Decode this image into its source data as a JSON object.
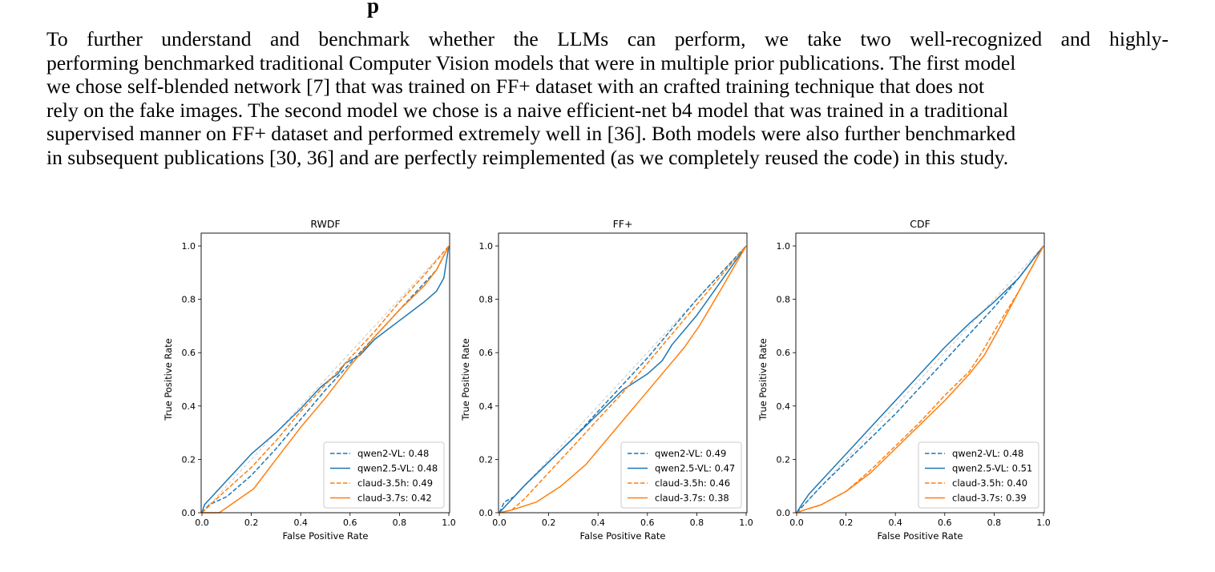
{
  "heading_fragment": "p",
  "paragraph_lines": [
    "To further understand and benchmark whether the LLMs can perform, we take two well-recognized and highly-",
    "performing benchmarked traditional Computer Vision models that were in multiple prior publications. The first model",
    "we chose self-blended network [7] that was trained on FF+ dataset with an crafted training technique that does not",
    "rely on the fake images. The second model we chose is a naive efficient-net b4 model that was trained in a traditional",
    "supervised manner on FF+ dataset and performed extremely well in [36]. Both models were also further benchmarked",
    "in subsequent publications [30, 36] and are perfectly reimplemented (as we completely reused the code) in this study."
  ],
  "colors": {
    "blue": "#1f77b4",
    "orange": "#ff7f0e",
    "diag": "#c8c8c8"
  },
  "chart_data": [
    {
      "type": "line",
      "title": "RWDF",
      "xlabel": "False Positive Rate",
      "ylabel": "True Positive Rate",
      "xlim": [
        0,
        1
      ],
      "ylim": [
        0,
        1
      ],
      "xticks": [
        "0.0",
        "0.2",
        "0.4",
        "0.6",
        "0.8",
        "1.0"
      ],
      "yticks": [
        "0.0",
        "0.2",
        "0.4",
        "0.6",
        "0.8",
        "1.0"
      ],
      "legend_position": "lower-right",
      "series": [
        {
          "name": "qwen2-VL: 0.48",
          "color": "blue",
          "dash": true,
          "points": [
            [
              0,
              0
            ],
            [
              0.03,
              0.03
            ],
            [
              0.1,
              0.06
            ],
            [
              0.2,
              0.14
            ],
            [
              0.3,
              0.24
            ],
            [
              0.4,
              0.35
            ],
            [
              0.5,
              0.46
            ],
            [
              0.6,
              0.56
            ],
            [
              0.7,
              0.66
            ],
            [
              0.8,
              0.76
            ],
            [
              0.9,
              0.86
            ],
            [
              0.95,
              0.91
            ],
            [
              1,
              1
            ]
          ]
        },
        {
          "name": "qwen2.5-VL: 0.48",
          "color": "blue",
          "dash": false,
          "points": [
            [
              0,
              0
            ],
            [
              0.01,
              0.03
            ],
            [
              0.05,
              0.07
            ],
            [
              0.1,
              0.12
            ],
            [
              0.2,
              0.22
            ],
            [
              0.3,
              0.3
            ],
            [
              0.4,
              0.39
            ],
            [
              0.48,
              0.47
            ],
            [
              0.52,
              0.5
            ],
            [
              0.55,
              0.52
            ],
            [
              0.58,
              0.56
            ],
            [
              0.64,
              0.59
            ],
            [
              0.7,
              0.65
            ],
            [
              0.8,
              0.72
            ],
            [
              0.9,
              0.79
            ],
            [
              0.95,
              0.83
            ],
            [
              0.98,
              0.88
            ],
            [
              1,
              1
            ]
          ]
        },
        {
          "name": "claud-3.5h: 0.49",
          "color": "orange",
          "dash": true,
          "points": [
            [
              0,
              0
            ],
            [
              0.08,
              0.07
            ],
            [
              0.2,
              0.17
            ],
            [
              0.3,
              0.27
            ],
            [
              0.4,
              0.38
            ],
            [
              0.5,
              0.48
            ],
            [
              0.6,
              0.58
            ],
            [
              0.7,
              0.68
            ],
            [
              0.8,
              0.79
            ],
            [
              0.9,
              0.89
            ],
            [
              1,
              1
            ]
          ]
        },
        {
          "name": "claud-3.7s: 0.42",
          "color": "orange",
          "dash": false,
          "points": [
            [
              0,
              0
            ],
            [
              0.07,
              0
            ],
            [
              0.21,
              0.09
            ],
            [
              0.3,
              0.2
            ],
            [
              0.4,
              0.32
            ],
            [
              0.5,
              0.43
            ],
            [
              0.6,
              0.55
            ],
            [
              0.7,
              0.66
            ],
            [
              0.8,
              0.76
            ],
            [
              0.9,
              0.85
            ],
            [
              0.95,
              0.91
            ],
            [
              1,
              1
            ]
          ]
        }
      ]
    },
    {
      "type": "line",
      "title": "FF+",
      "xlabel": "False Positive Rate",
      "ylabel": "True Positive Rate",
      "xlim": [
        0,
        1
      ],
      "ylim": [
        0,
        1
      ],
      "xticks": [
        "0.0",
        "0.2",
        "0.4",
        "0.6",
        "0.8",
        "1.0"
      ],
      "yticks": [
        "0.0",
        "0.2",
        "0.4",
        "0.6",
        "0.8",
        "1.0"
      ],
      "legend_position": "lower-right",
      "series": [
        {
          "name": "qwen2-VL: 0.49",
          "color": "blue",
          "dash": true,
          "points": [
            [
              0,
              0
            ],
            [
              0.02,
              0.04
            ],
            [
              0.06,
              0.06
            ],
            [
              0.1,
              0.1
            ],
            [
              0.2,
              0.19
            ],
            [
              0.3,
              0.28
            ],
            [
              0.4,
              0.38
            ],
            [
              0.5,
              0.48
            ],
            [
              0.6,
              0.58
            ],
            [
              0.7,
              0.69
            ],
            [
              0.8,
              0.8
            ],
            [
              0.9,
              0.9
            ],
            [
              1,
              1
            ]
          ]
        },
        {
          "name": "qwen2.5-VL: 0.47",
          "color": "blue",
          "dash": false,
          "points": [
            [
              0,
              0
            ],
            [
              0.03,
              0.03
            ],
            [
              0.1,
              0.1
            ],
            [
              0.2,
              0.19
            ],
            [
              0.3,
              0.28
            ],
            [
              0.4,
              0.37
            ],
            [
              0.5,
              0.46
            ],
            [
              0.6,
              0.52
            ],
            [
              0.66,
              0.57
            ],
            [
              0.7,
              0.63
            ],
            [
              0.8,
              0.74
            ],
            [
              0.9,
              0.87
            ],
            [
              1,
              1
            ]
          ]
        },
        {
          "name": "claud-3.5h: 0.46",
          "color": "orange",
          "dash": true,
          "points": [
            [
              0,
              0
            ],
            [
              0.05,
              0.01
            ],
            [
              0.1,
              0.05
            ],
            [
              0.2,
              0.15
            ],
            [
              0.3,
              0.25
            ],
            [
              0.4,
              0.35
            ],
            [
              0.5,
              0.45
            ],
            [
              0.6,
              0.56
            ],
            [
              0.7,
              0.67
            ],
            [
              0.8,
              0.78
            ],
            [
              0.9,
              0.89
            ],
            [
              1,
              1
            ]
          ]
        },
        {
          "name": "claud-3.7s: 0.38",
          "color": "orange",
          "dash": false,
          "points": [
            [
              0,
              0
            ],
            [
              0.05,
              0.01
            ],
            [
              0.15,
              0.04
            ],
            [
              0.25,
              0.1
            ],
            [
              0.35,
              0.18
            ],
            [
              0.45,
              0.29
            ],
            [
              0.55,
              0.4
            ],
            [
              0.65,
              0.51
            ],
            [
              0.75,
              0.62
            ],
            [
              0.81,
              0.7
            ],
            [
              0.9,
              0.84
            ],
            [
              1,
              1
            ]
          ]
        }
      ]
    },
    {
      "type": "line",
      "title": "CDF",
      "xlabel": "False Positive Rate",
      "ylabel": "True Positive Rate",
      "xlim": [
        0,
        1
      ],
      "ylim": [
        0,
        1
      ],
      "xticks": [
        "0.0",
        "0.2",
        "0.4",
        "0.6",
        "0.8",
        "1.0"
      ],
      "yticks": [
        "0.0",
        "0.2",
        "0.4",
        "0.6",
        "0.8",
        "1.0"
      ],
      "legend_position": "lower-right",
      "series": [
        {
          "name": "qwen2-VL: 0.48",
          "color": "blue",
          "dash": true,
          "points": [
            [
              0,
              0
            ],
            [
              0.05,
              0.05
            ],
            [
              0.1,
              0.1
            ],
            [
              0.2,
              0.19
            ],
            [
              0.3,
              0.28
            ],
            [
              0.4,
              0.37
            ],
            [
              0.5,
              0.47
            ],
            [
              0.6,
              0.57
            ],
            [
              0.7,
              0.67
            ],
            [
              0.8,
              0.77
            ],
            [
              0.9,
              0.88
            ],
            [
              1,
              1
            ]
          ]
        },
        {
          "name": "qwen2.5-VL: 0.51",
          "color": "blue",
          "dash": false,
          "points": [
            [
              0,
              0
            ],
            [
              0.02,
              0.03
            ],
            [
              0.05,
              0.07
            ],
            [
              0.1,
              0.12
            ],
            [
              0.2,
              0.22
            ],
            [
              0.3,
              0.32
            ],
            [
              0.4,
              0.42
            ],
            [
              0.5,
              0.52
            ],
            [
              0.6,
              0.62
            ],
            [
              0.7,
              0.71
            ],
            [
              0.8,
              0.79
            ],
            [
              0.9,
              0.88
            ],
            [
              1,
              1
            ]
          ]
        },
        {
          "name": "claud-3.5h: 0.40",
          "color": "orange",
          "dash": true,
          "points": [
            [
              0,
              0
            ],
            [
              0.03,
              0.01
            ],
            [
              0.1,
              0.03
            ],
            [
              0.2,
              0.08
            ],
            [
              0.3,
              0.16
            ],
            [
              0.4,
              0.25
            ],
            [
              0.5,
              0.34
            ],
            [
              0.6,
              0.44
            ],
            [
              0.7,
              0.53
            ],
            [
              0.75,
              0.6
            ],
            [
              0.8,
              0.68
            ],
            [
              0.9,
              0.83
            ],
            [
              1,
              1
            ]
          ]
        },
        {
          "name": "claud-3.7s: 0.39",
          "color": "orange",
          "dash": false,
          "points": [
            [
              0,
              0
            ],
            [
              0.03,
              0.01
            ],
            [
              0.1,
              0.03
            ],
            [
              0.2,
              0.08
            ],
            [
              0.3,
              0.15
            ],
            [
              0.4,
              0.24
            ],
            [
              0.5,
              0.33
            ],
            [
              0.6,
              0.42
            ],
            [
              0.7,
              0.52
            ],
            [
              0.76,
              0.59
            ],
            [
              0.82,
              0.69
            ],
            [
              0.9,
              0.83
            ],
            [
              1,
              1
            ]
          ]
        }
      ]
    }
  ]
}
